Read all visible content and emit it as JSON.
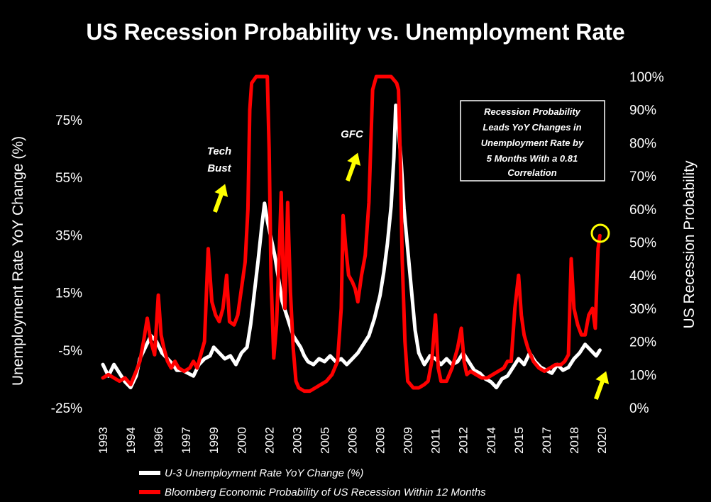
{
  "chart_data": {
    "type": "line",
    "title": "US Recession Probability vs. Unemployment Rate",
    "ylabel_left": "Unemployment Rate YoY Change (%)",
    "ylabel_right": "US Recession Probability",
    "left_ticks": [
      "-25%",
      "-5%",
      "15%",
      "35%",
      "55%",
      "75%"
    ],
    "left_ylim": [
      -25,
      90
    ],
    "right_ticks": [
      "0%",
      "10%",
      "20%",
      "30%",
      "40%",
      "50%",
      "60%",
      "70%",
      "80%",
      "90%",
      "100%"
    ],
    "right_ylim": [
      0,
      100
    ],
    "x_ticks": [
      "1993",
      "1994",
      "1996",
      "1997",
      "1999",
      "2000",
      "2002",
      "2003",
      "2005",
      "2006",
      "2008",
      "2009",
      "2011",
      "2012",
      "2014",
      "2015",
      "2017",
      "2018",
      "2020"
    ],
    "xlim": [
      1993.0,
      2020.0
    ],
    "legend": [
      "U-3 Unemployment Rate YoY Change (%)",
      "Bloomberg Economic Probability of US Recession Within 12 Months"
    ],
    "annotations": {
      "tech_bust": [
        "Tech",
        "Bust"
      ],
      "gfc": "GFC",
      "box": [
        "Recession Probability",
        "Leads YoY Changes in",
        "Unemployment Rate by",
        "5 Months With a 0.81",
        "Correlation"
      ]
    },
    "series": [
      {
        "name": "U-3 Unemployment Rate YoY Change (%)",
        "axis": "left",
        "color": "#ffffff",
        "points": [
          [
            1993.0,
            -10
          ],
          [
            1993.3,
            -14
          ],
          [
            1993.6,
            -10
          ],
          [
            1993.9,
            -13
          ],
          [
            1994.2,
            -16
          ],
          [
            1994.5,
            -18
          ],
          [
            1994.8,
            -14
          ],
          [
            1995.0,
            -8
          ],
          [
            1995.3,
            -4
          ],
          [
            1995.6,
            0
          ],
          [
            1995.9,
            -2
          ],
          [
            1996.2,
            -6
          ],
          [
            1996.5,
            -8
          ],
          [
            1996.8,
            -10
          ],
          [
            1997.0,
            -12
          ],
          [
            1997.3,
            -12
          ],
          [
            1997.6,
            -13
          ],
          [
            1997.9,
            -14
          ],
          [
            1998.2,
            -10
          ],
          [
            1998.5,
            -8
          ],
          [
            1998.8,
            -7
          ],
          [
            1999.0,
            -4
          ],
          [
            1999.3,
            -6
          ],
          [
            1999.6,
            -8
          ],
          [
            1999.9,
            -7
          ],
          [
            2000.2,
            -10
          ],
          [
            2000.5,
            -6
          ],
          [
            2000.8,
            -4
          ],
          [
            2001.0,
            4
          ],
          [
            2001.2,
            15
          ],
          [
            2001.4,
            26
          ],
          [
            2001.6,
            38
          ],
          [
            2001.75,
            46
          ],
          [
            2001.9,
            40
          ],
          [
            2002.1,
            34
          ],
          [
            2002.3,
            28
          ],
          [
            2002.5,
            20
          ],
          [
            2002.7,
            12
          ],
          [
            2002.9,
            8
          ],
          [
            2003.1,
            4
          ],
          [
            2003.3,
            0
          ],
          [
            2003.5,
            -2
          ],
          [
            2003.7,
            -4
          ],
          [
            2003.9,
            -7
          ],
          [
            2004.1,
            -9
          ],
          [
            2004.4,
            -10
          ],
          [
            2004.7,
            -8
          ],
          [
            2005.0,
            -9
          ],
          [
            2005.3,
            -7
          ],
          [
            2005.6,
            -9
          ],
          [
            2005.9,
            -8
          ],
          [
            2006.2,
            -10
          ],
          [
            2006.5,
            -8
          ],
          [
            2006.8,
            -6
          ],
          [
            2007.1,
            -3
          ],
          [
            2007.4,
            0
          ],
          [
            2007.7,
            6
          ],
          [
            2008.0,
            14
          ],
          [
            2008.2,
            22
          ],
          [
            2008.4,
            32
          ],
          [
            2008.6,
            45
          ],
          [
            2008.75,
            62
          ],
          [
            2008.85,
            80
          ],
          [
            2009.0,
            72
          ],
          [
            2009.15,
            60
          ],
          [
            2009.3,
            44
          ],
          [
            2009.5,
            30
          ],
          [
            2009.7,
            16
          ],
          [
            2009.9,
            2
          ],
          [
            2010.1,
            -6
          ],
          [
            2010.4,
            -10
          ],
          [
            2010.7,
            -7
          ],
          [
            2011.0,
            -8
          ],
          [
            2011.3,
            -10
          ],
          [
            2011.6,
            -8
          ],
          [
            2011.9,
            -10
          ],
          [
            2012.2,
            -9
          ],
          [
            2012.5,
            -6
          ],
          [
            2012.8,
            -9
          ],
          [
            2013.1,
            -12
          ],
          [
            2013.4,
            -13
          ],
          [
            2013.7,
            -15
          ],
          [
            2014.0,
            -16
          ],
          [
            2014.3,
            -18
          ],
          [
            2014.6,
            -15
          ],
          [
            2014.9,
            -14
          ],
          [
            2015.2,
            -11
          ],
          [
            2015.5,
            -8
          ],
          [
            2015.8,
            -10
          ],
          [
            2016.1,
            -6
          ],
          [
            2016.4,
            -9
          ],
          [
            2016.7,
            -11
          ],
          [
            2017.0,
            -12
          ],
          [
            2017.3,
            -13
          ],
          [
            2017.6,
            -10
          ],
          [
            2017.9,
            -12
          ],
          [
            2018.2,
            -11
          ],
          [
            2018.5,
            -8
          ],
          [
            2018.8,
            -6
          ],
          [
            2019.1,
            -3
          ],
          [
            2019.4,
            -5
          ],
          [
            2019.7,
            -7
          ],
          [
            2019.9,
            -5
          ]
        ]
      },
      {
        "name": "Bloomberg Economic Probability of US Recession Within 12 Months",
        "axis": "right",
        "color": "#ff0000",
        "points": [
          [
            1993.0,
            9
          ],
          [
            1993.3,
            10
          ],
          [
            1993.6,
            9
          ],
          [
            1993.9,
            8
          ],
          [
            1994.2,
            9
          ],
          [
            1994.5,
            7
          ],
          [
            1994.8,
            11
          ],
          [
            1995.0,
            14
          ],
          [
            1995.2,
            20
          ],
          [
            1995.4,
            27
          ],
          [
            1995.6,
            20
          ],
          [
            1995.8,
            16
          ],
          [
            1996.0,
            34
          ],
          [
            1996.15,
            22
          ],
          [
            1996.3,
            18
          ],
          [
            1996.5,
            14
          ],
          [
            1996.7,
            12
          ],
          [
            1996.9,
            14
          ],
          [
            1997.1,
            12
          ],
          [
            1997.4,
            11
          ],
          [
            1997.7,
            12
          ],
          [
            1997.9,
            14
          ],
          [
            1998.1,
            12
          ],
          [
            1998.3,
            16
          ],
          [
            1998.5,
            20
          ],
          [
            1998.7,
            48
          ],
          [
            1998.9,
            32
          ],
          [
            1999.1,
            28
          ],
          [
            1999.3,
            26
          ],
          [
            1999.5,
            30
          ],
          [
            1999.7,
            40
          ],
          [
            1999.85,
            26
          ],
          [
            2000.1,
            25
          ],
          [
            2000.3,
            28
          ],
          [
            2000.5,
            36
          ],
          [
            2000.7,
            44
          ],
          [
            2000.85,
            60
          ],
          [
            2000.95,
            90
          ],
          [
            2001.05,
            98
          ],
          [
            2001.3,
            100
          ],
          [
            2001.6,
            100
          ],
          [
            2001.9,
            100
          ],
          [
            2002.0,
            78
          ],
          [
            2002.1,
            40
          ],
          [
            2002.25,
            15
          ],
          [
            2002.4,
            25
          ],
          [
            2002.55,
            48
          ],
          [
            2002.65,
            65
          ],
          [
            2002.75,
            42
          ],
          [
            2002.85,
            30
          ],
          [
            2002.95,
            50
          ],
          [
            2003.0,
            62
          ],
          [
            2003.15,
            35
          ],
          [
            2003.3,
            18
          ],
          [
            2003.45,
            8
          ],
          [
            2003.6,
            6
          ],
          [
            2003.9,
            5
          ],
          [
            2004.2,
            5
          ],
          [
            2004.5,
            6
          ],
          [
            2004.8,
            7
          ],
          [
            2005.1,
            8
          ],
          [
            2005.4,
            10
          ],
          [
            2005.7,
            14
          ],
          [
            2005.9,
            30
          ],
          [
            2006.0,
            58
          ],
          [
            2006.15,
            48
          ],
          [
            2006.3,
            40
          ],
          [
            2006.5,
            38
          ],
          [
            2006.65,
            36
          ],
          [
            2006.8,
            32
          ],
          [
            2007.0,
            40
          ],
          [
            2007.2,
            46
          ],
          [
            2007.4,
            62
          ],
          [
            2007.6,
            96
          ],
          [
            2007.8,
            100
          ],
          [
            2008.0,
            100
          ],
          [
            2008.3,
            100
          ],
          [
            2008.6,
            100
          ],
          [
            2008.9,
            98
          ],
          [
            2009.0,
            96
          ],
          [
            2009.1,
            75
          ],
          [
            2009.2,
            45
          ],
          [
            2009.35,
            20
          ],
          [
            2009.5,
            8
          ],
          [
            2009.8,
            6
          ],
          [
            2010.1,
            6
          ],
          [
            2010.4,
            7
          ],
          [
            2010.6,
            8
          ],
          [
            2010.8,
            14
          ],
          [
            2011.0,
            28
          ],
          [
            2011.15,
            12
          ],
          [
            2011.3,
            8
          ],
          [
            2011.6,
            8
          ],
          [
            2011.9,
            12
          ],
          [
            2012.2,
            18
          ],
          [
            2012.4,
            24
          ],
          [
            2012.55,
            14
          ],
          [
            2012.7,
            10
          ],
          [
            2012.9,
            11
          ],
          [
            2013.2,
            10
          ],
          [
            2013.5,
            9
          ],
          [
            2013.8,
            9
          ],
          [
            2014.1,
            10
          ],
          [
            2014.4,
            11
          ],
          [
            2014.7,
            12
          ],
          [
            2014.9,
            14
          ],
          [
            2015.1,
            14
          ],
          [
            2015.3,
            30
          ],
          [
            2015.5,
            40
          ],
          [
            2015.65,
            28
          ],
          [
            2015.8,
            22
          ],
          [
            2016.0,
            18
          ],
          [
            2016.3,
            14
          ],
          [
            2016.6,
            12
          ],
          [
            2016.9,
            11
          ],
          [
            2017.2,
            12
          ],
          [
            2017.5,
            13
          ],
          [
            2017.8,
            13
          ],
          [
            2018.0,
            14
          ],
          [
            2018.2,
            16
          ],
          [
            2018.35,
            45
          ],
          [
            2018.5,
            30
          ],
          [
            2018.7,
            25
          ],
          [
            2018.9,
            22
          ],
          [
            2019.1,
            22
          ],
          [
            2019.3,
            28
          ],
          [
            2019.5,
            30
          ],
          [
            2019.65,
            24
          ],
          [
            2019.8,
            48
          ],
          [
            2019.9,
            52
          ]
        ]
      }
    ]
  }
}
